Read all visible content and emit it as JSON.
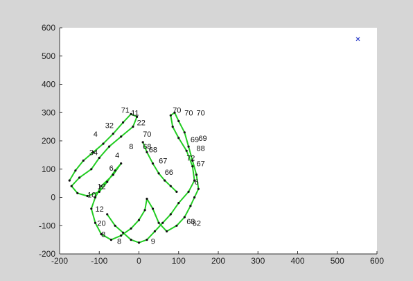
{
  "chart_data": {
    "type": "line",
    "title": "",
    "xlabel": "",
    "ylabel": "",
    "xlim": [
      -200,
      600
    ],
    "ylim": [
      -200,
      600
    ],
    "grid": false,
    "legend": "none",
    "x_ticks": [
      -200,
      -100,
      0,
      100,
      200,
      300,
      400,
      500,
      600
    ],
    "y_ticks": [
      -200,
      -100,
      0,
      100,
      200,
      300,
      400,
      500,
      600
    ],
    "colors": {
      "figure_background": "#d6d6d6",
      "axes_background": "#ffffff",
      "trajectory": "#22cc22",
      "number_label": "#111111",
      "marker": "#3344cc"
    },
    "series": [
      {
        "values": [
          [
            -175,
            60
          ],
          [
            -160,
            95
          ],
          [
            -140,
            130
          ],
          [
            -115,
            160
          ],
          [
            -90,
            190
          ],
          [
            -65,
            225
          ],
          [
            -40,
            265
          ],
          [
            -20,
            295
          ],
          [
            -5,
            285
          ],
          [
            -15,
            250
          ],
          [
            -45,
            215
          ],
          [
            -75,
            180
          ],
          [
            -100,
            140
          ],
          [
            -120,
            100
          ],
          [
            -150,
            70
          ],
          [
            -170,
            40
          ],
          [
            -155,
            15
          ],
          [
            -130,
            5
          ],
          [
            -100,
            20
          ],
          [
            -80,
            55
          ],
          [
            -60,
            95
          ],
          [
            -45,
            120
          ],
          [
            -65,
            80
          ],
          [
            -95,
            40
          ],
          [
            -110,
            0
          ],
          [
            -120,
            -40
          ],
          [
            -110,
            -90
          ],
          [
            -95,
            -130
          ],
          [
            -70,
            -150
          ],
          [
            -45,
            -135
          ],
          [
            -20,
            -110
          ],
          [
            0,
            -80
          ],
          [
            15,
            -45
          ],
          [
            20,
            -5
          ],
          [
            35,
            -40
          ],
          [
            50,
            -90
          ],
          [
            70,
            -120
          ],
          [
            95,
            -100
          ],
          [
            115,
            -70
          ],
          [
            130,
            -30
          ],
          [
            140,
            0
          ],
          [
            150,
            30
          ],
          [
            145,
            80
          ],
          [
            135,
            130
          ],
          [
            125,
            180
          ],
          [
            115,
            230
          ],
          [
            100,
            270
          ],
          [
            90,
            300
          ],
          [
            80,
            290
          ],
          [
            85,
            250
          ],
          [
            100,
            210
          ],
          [
            120,
            165
          ],
          [
            135,
            110
          ],
          [
            140,
            60
          ],
          [
            125,
            20
          ],
          [
            100,
            -20
          ],
          [
            80,
            -60
          ],
          [
            60,
            -90
          ],
          [
            40,
            -120
          ],
          [
            20,
            -150
          ],
          [
            0,
            -160
          ],
          [
            -20,
            -150
          ],
          [
            -40,
            -125
          ],
          [
            -60,
            -100
          ],
          [
            -80,
            -60
          ]
        ]
      },
      {
        "values": [
          [
            10,
            195
          ],
          [
            20,
            160
          ],
          [
            35,
            120
          ],
          [
            50,
            85
          ],
          [
            65,
            60
          ],
          [
            80,
            40
          ],
          [
            95,
            20
          ]
        ]
      }
    ],
    "number_labels": [
      {
        "text": "71",
        "x": -45,
        "y": 300
      },
      {
        "text": "11",
        "x": -20,
        "y": 290
      },
      {
        "text": "32",
        "x": -85,
        "y": 245
      },
      {
        "text": "22",
        "x": -5,
        "y": 255
      },
      {
        "text": "4",
        "x": -115,
        "y": 215
      },
      {
        "text": "34",
        "x": -125,
        "y": 150
      },
      {
        "text": "8",
        "x": -25,
        "y": 170
      },
      {
        "text": "4",
        "x": -60,
        "y": 140
      },
      {
        "text": "6",
        "x": -75,
        "y": 95
      },
      {
        "text": "12",
        "x": -105,
        "y": 30
      },
      {
        "text": "10",
        "x": -130,
        "y": 0
      },
      {
        "text": "70",
        "x": 10,
        "y": 215
      },
      {
        "text": "68",
        "x": 10,
        "y": 170
      },
      {
        "text": "68",
        "x": 25,
        "y": 160
      },
      {
        "text": "67",
        "x": 50,
        "y": 120
      },
      {
        "text": "66",
        "x": 65,
        "y": 80
      },
      {
        "text": "70",
        "x": 85,
        "y": 300
      },
      {
        "text": "70",
        "x": 115,
        "y": 290
      },
      {
        "text": "70",
        "x": 145,
        "y": 290
      },
      {
        "text": "69",
        "x": 130,
        "y": 195
      },
      {
        "text": "69",
        "x": 150,
        "y": 200
      },
      {
        "text": "88",
        "x": 145,
        "y": 165
      },
      {
        "text": "67",
        "x": 145,
        "y": 110
      },
      {
        "text": "72",
        "x": 120,
        "y": 130
      },
      {
        "text": "6",
        "x": 140,
        "y": 45
      },
      {
        "text": "12",
        "x": -110,
        "y": -50
      },
      {
        "text": "20",
        "x": -105,
        "y": -100
      },
      {
        "text": "8",
        "x": -95,
        "y": -140
      },
      {
        "text": "68",
        "x": 120,
        "y": -95
      },
      {
        "text": "62",
        "x": 135,
        "y": -100
      },
      {
        "text": "8",
        "x": -55,
        "y": -165
      },
      {
        "text": "9",
        "x": 30,
        "y": -165
      }
    ],
    "markers": [
      {
        "x": 552,
        "y": 560,
        "shape": "x"
      }
    ]
  }
}
